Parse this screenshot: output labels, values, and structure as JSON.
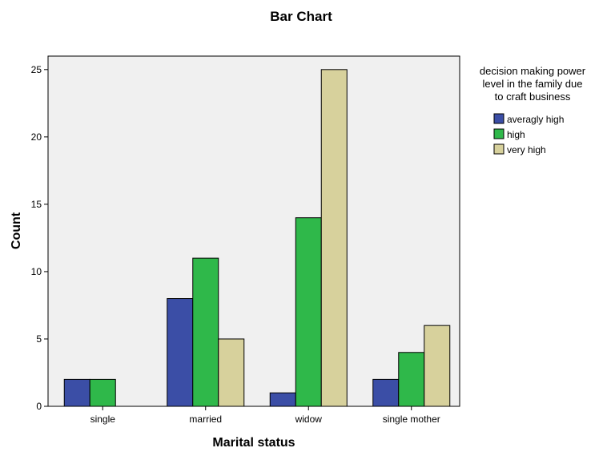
{
  "chart_data": {
    "type": "bar",
    "title": "Bar Chart",
    "xlabel": "Marital status",
    "ylabel": "Count",
    "categories": [
      "single",
      "married",
      "widow",
      "single mother"
    ],
    "ylim": [
      0,
      26
    ],
    "yticks": [
      0,
      5,
      10,
      15,
      20,
      25
    ],
    "grid": false,
    "legend_position": "right",
    "legend_title": [
      "decision making power",
      "level in the family due",
      "to craft business"
    ],
    "series": [
      {
        "name": "averagly high",
        "color": "#3b4ea6",
        "values": [
          2,
          8,
          1,
          2
        ]
      },
      {
        "name": "high",
        "color": "#2fb84a",
        "values": [
          2,
          11,
          14,
          4
        ]
      },
      {
        "name": "very high",
        "color": "#d7d19c",
        "values": [
          0,
          5,
          25,
          6
        ]
      }
    ],
    "plot_background": "#f0f0f0"
  }
}
